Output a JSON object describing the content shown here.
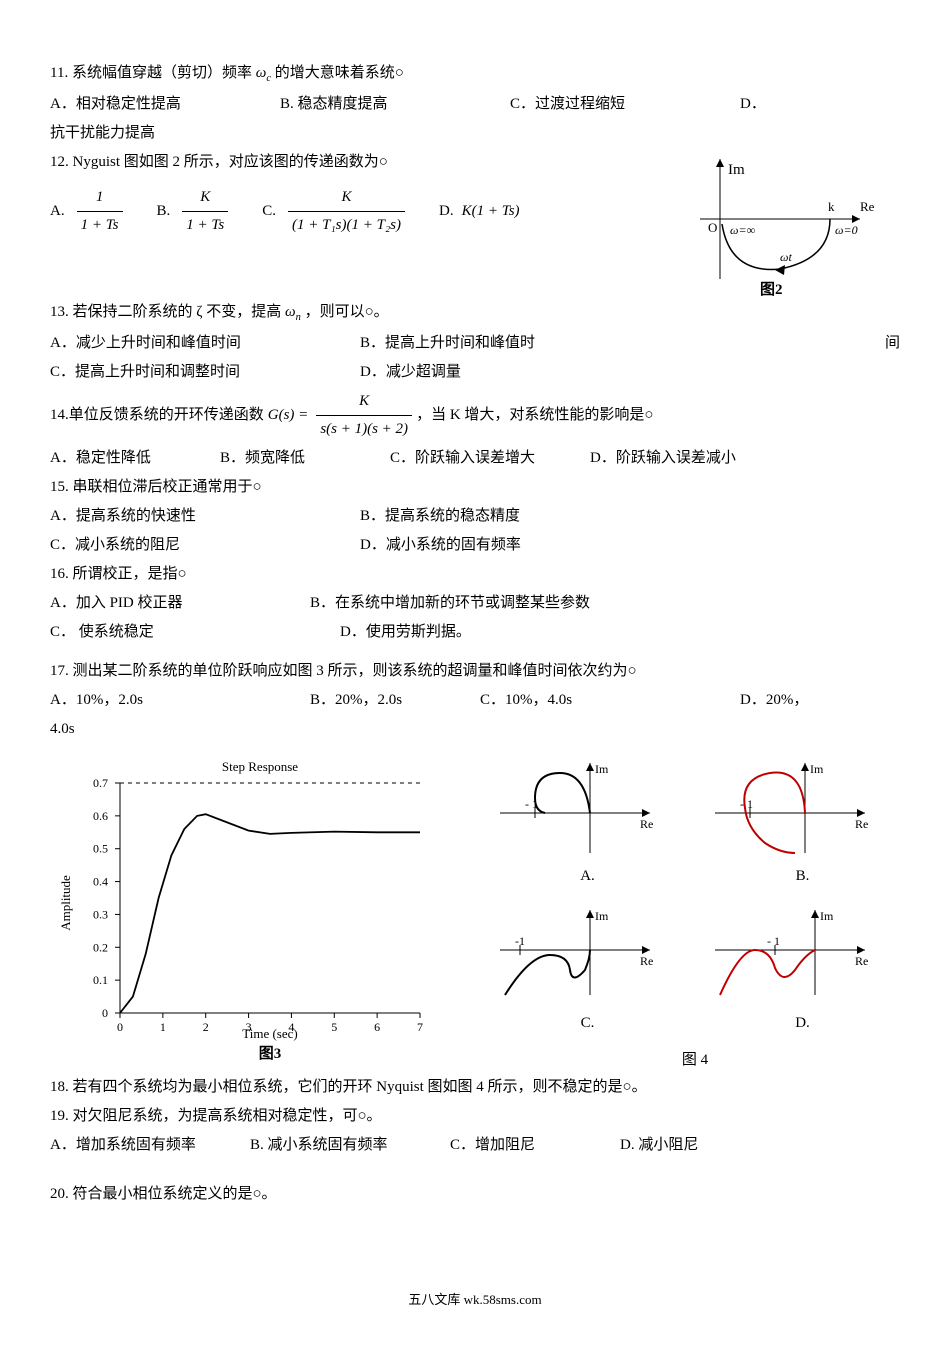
{
  "q11": {
    "num": "11.",
    "text": "系统幅值穿越（剪切）频率",
    "text2": "的增大意味着系统○",
    "omega": "ω",
    "omegaSub": "c",
    "opts": {
      "A": "A．相对稳定性提高",
      "B": "B. 稳态精度提高",
      "C": "C．过渡过程缩短",
      "D": "D．"
    },
    "D_text": "抗干扰能力提高"
  },
  "q12": {
    "num": "12.",
    "text": "Nyguist 图如图 2 所示，对应该图的传递函数为○",
    "opts": {
      "A": {
        "label": "A.",
        "num": "1",
        "den": "1 + Ts"
      },
      "B": {
        "label": "B.",
        "num": "K",
        "den": "1 + Ts"
      },
      "C": {
        "label": "C.",
        "num": "K",
        "den": "(1 + T₁s)(1 + T₂s)"
      },
      "D": {
        "label": "D.",
        "expr": "K(1 + Ts)"
      }
    },
    "fig": {
      "Im": "Im",
      "Re": "Re",
      "k": "k",
      "winf": "ω=∞",
      "w0": "ω=0",
      "wt": "ωt",
      "O": "O",
      "label": "图2"
    }
  },
  "q13": {
    "num": "13.",
    "text1": "若保持二阶系统的 ζ 不变，提高",
    "omega": "ω",
    "omegaSub": "n",
    "text2": "，则可以○。",
    "opts": {
      "A": "A．减少上升时间和峰值时间",
      "B": "B．提高上升时间和峰值时",
      "B_tail": "间",
      "C": "C．提高上升时间和调整时间",
      "D": "D．减少超调量"
    }
  },
  "q14": {
    "num": "14.",
    "text1": "单位反馈系统的开环传递函数",
    "G": "G(s) =",
    "num_f": "K",
    "den_f": "s(s + 1)(s + 2)",
    "text2": "，当 K 增大，对系统性能的影响是○",
    "opts": {
      "A": "A．稳定性降低",
      "B": "B．频宽降低",
      "C": "C．阶跃输入误差增大",
      "D": "D．阶跃输入误差减小"
    }
  },
  "q15": {
    "num": "15.",
    "text": "串联相位滞后校正通常用于○",
    "opts": {
      "A": "A．提高系统的快速性",
      "B": "B．提高系统的稳态精度",
      "C": "C．减小系统的阻尼",
      "D": "D．减小系统的固有频率"
    }
  },
  "q16": {
    "num": "16.",
    "text": "所谓校正，是指○",
    "opts": {
      "A": "A．加入 PID 校正器",
      "B": "B．在系统中增加新的环节或调整某些参数",
      "C": "C． 使系统稳定",
      "D": "D．使用劳斯判据。"
    }
  },
  "q17": {
    "num": "17.",
    "text": "测出某二阶系统的单位阶跃响应如图 3 所示，则该系统的超调量和峰值时间依次约为○",
    "opts": {
      "A": "A．10%，2.0s",
      "B": "B．20%，2.0s",
      "C": "C．10%，4.0s",
      "D": "D．20%，"
    },
    "D_tail": "4.0s",
    "chart": {
      "title": "Step Response",
      "xlabel": "Time (sec)",
      "ylabel": "Amplitude",
      "fig_label": "图3",
      "yticks": [
        "0",
        "0.1",
        "0.2",
        "0.3",
        "0.4",
        "0.5",
        "0.6",
        "0.7"
      ],
      "xticks": [
        "0",
        "1",
        "2",
        "3",
        "4",
        "5",
        "6",
        "7"
      ],
      "xlim": [
        0,
        7
      ],
      "ylim": [
        0,
        0.7
      ],
      "grid_color": "#666",
      "line_color": "#000",
      "dashline_y": 0.7,
      "curve": [
        [
          0,
          0
        ],
        [
          0.3,
          0.05
        ],
        [
          0.6,
          0.18
        ],
        [
          0.9,
          0.35
        ],
        [
          1.2,
          0.48
        ],
        [
          1.5,
          0.56
        ],
        [
          1.8,
          0.6
        ],
        [
          2.0,
          0.605
        ],
        [
          2.5,
          0.58
        ],
        [
          3.0,
          0.555
        ],
        [
          3.5,
          0.545
        ],
        [
          4.0,
          0.548
        ],
        [
          5.0,
          0.552
        ],
        [
          6.0,
          0.55
        ],
        [
          7.0,
          0.55
        ]
      ]
    },
    "nyquist": {
      "Im": "Im",
      "Re": "Re",
      "minus1": "- 1",
      "labels": {
        "A": "A.",
        "B": "B.",
        "C": "C.",
        "D": "D."
      },
      "fig_label": "图 4",
      "curve_color_black": "#000",
      "curve_color_red": "#c00000"
    }
  },
  "q18": {
    "num": "18.",
    "text": "若有四个系统均为最小相位系统，它们的开环 Nyquist 图如图 4 所示，则不稳定的是○。"
  },
  "q19": {
    "num": "19.",
    "text": "对欠阻尼系统，为提高系统相对稳定性，可○。",
    "opts": {
      "A": "A．增加系统固有频率",
      "B": "B. 减小系统固有频率",
      "C": "C．增加阻尼",
      "D": "D. 减小阻尼"
    }
  },
  "q20": {
    "num": "20.",
    "text": "符合最小相位系统定义的是○。"
  },
  "footer": "五八文库 wk.58sms.com"
}
